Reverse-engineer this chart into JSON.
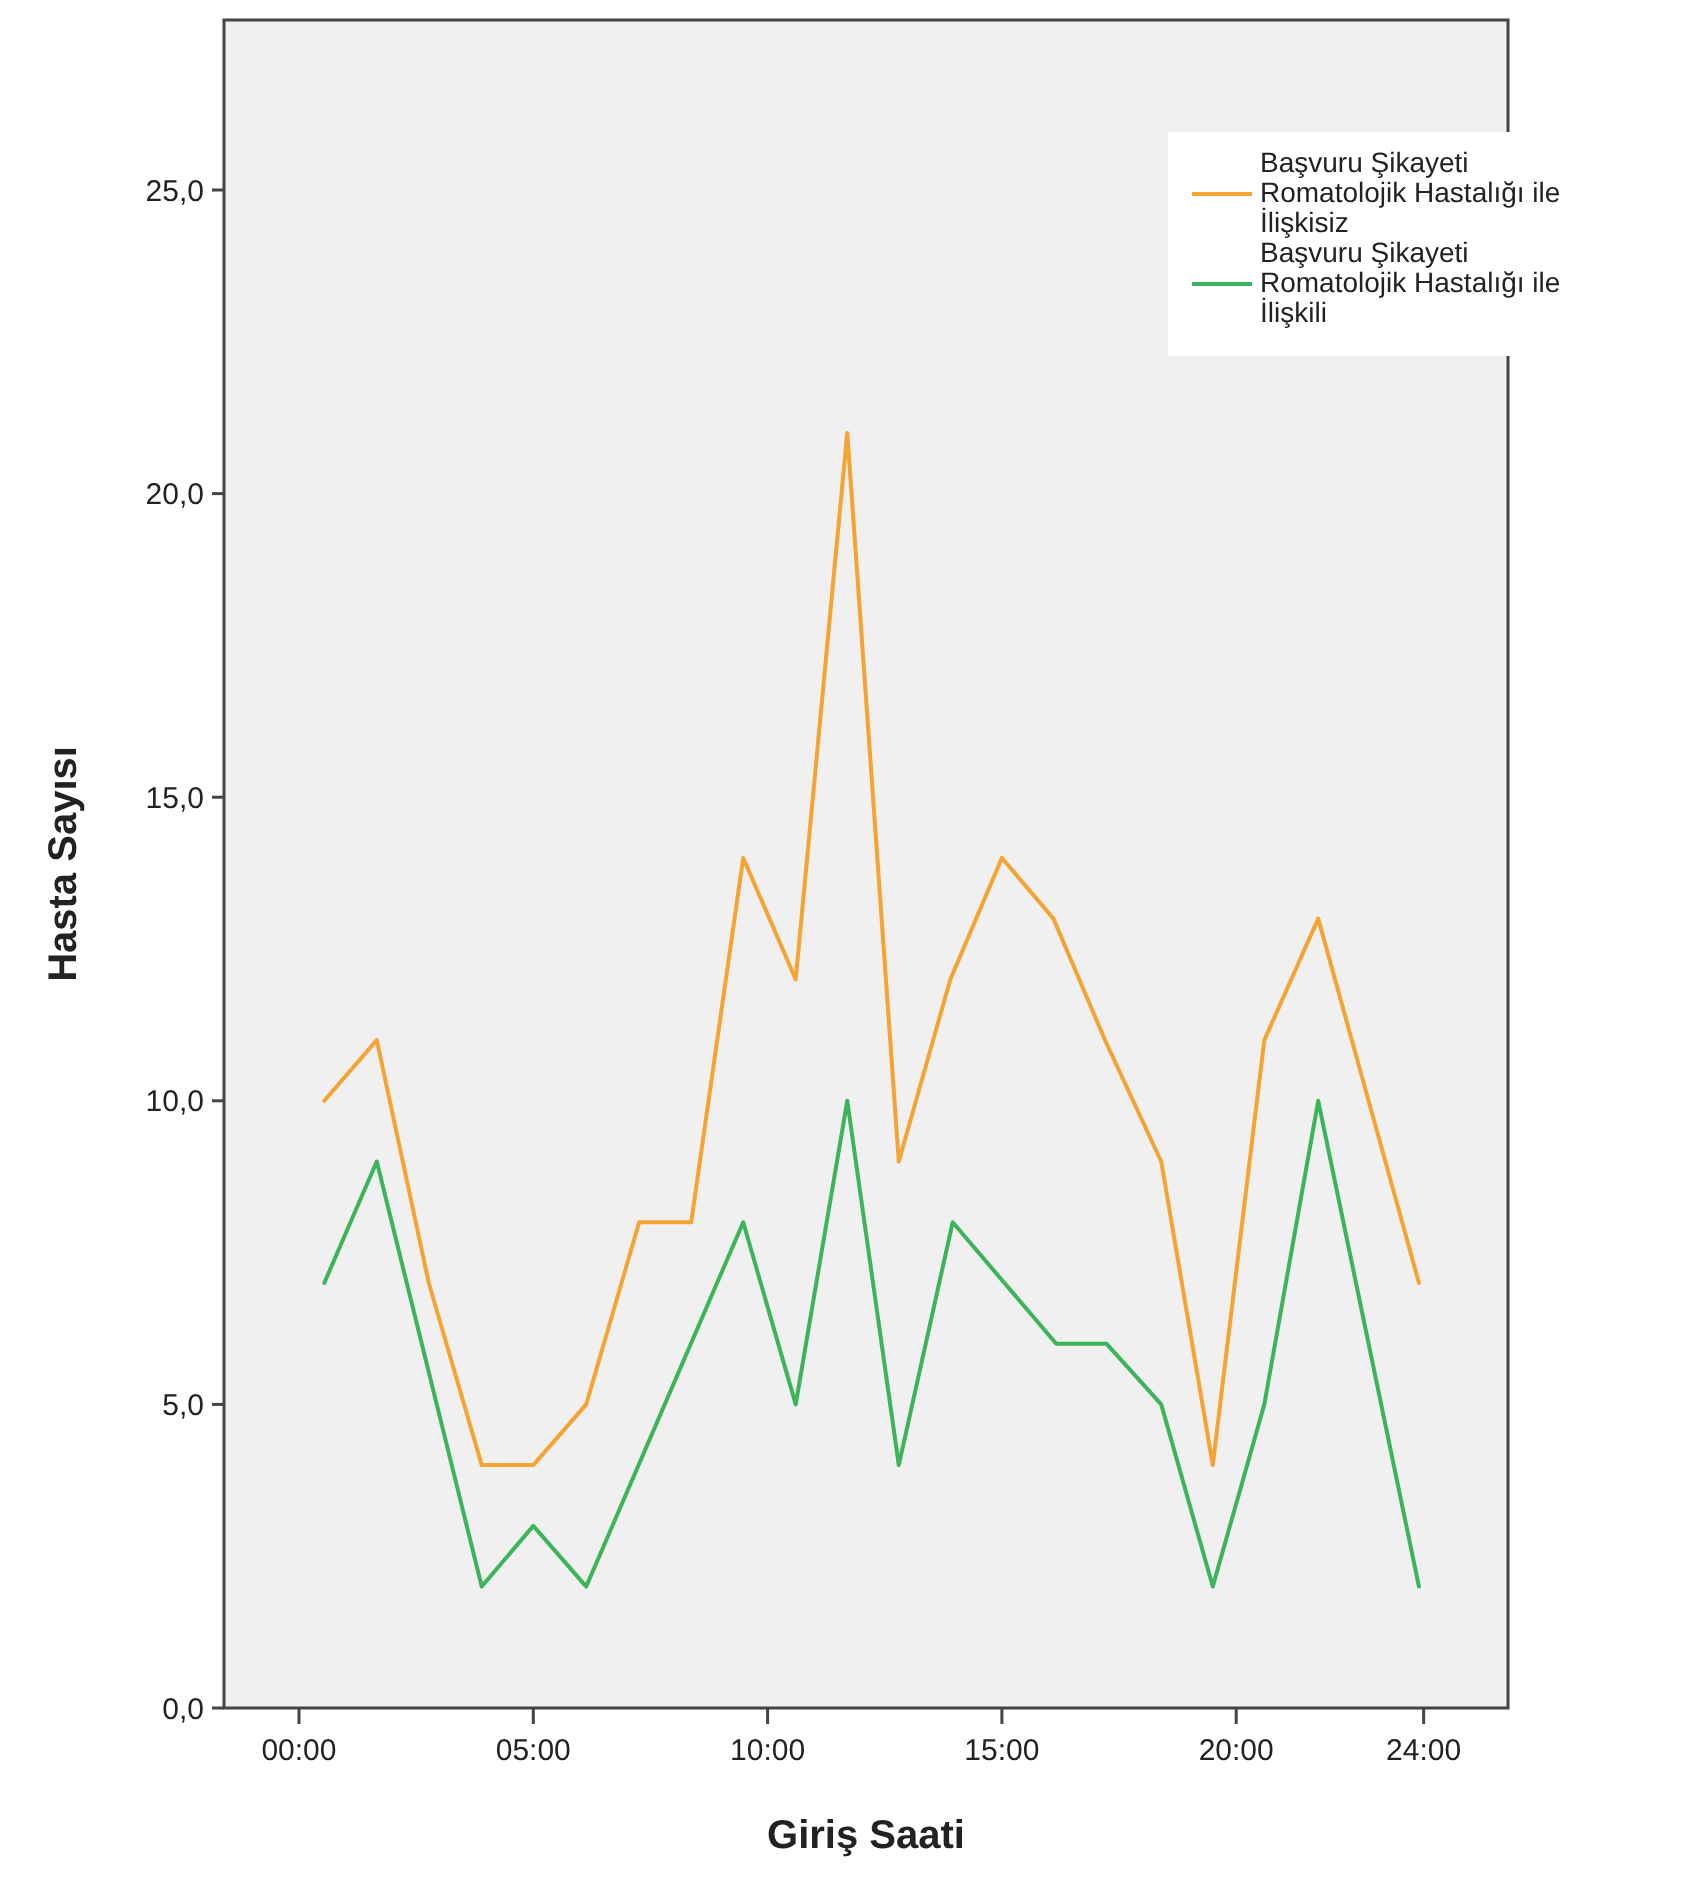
{
  "chart_data": {
    "type": "line",
    "xlabel": "Giriş Saati",
    "ylabel": "Hasta Sayısı",
    "xlim": [
      -1.6,
      25.8
    ],
    "ylim": [
      0,
      27.8
    ],
    "xticks": [
      {
        "value": 0,
        "label": "00:00"
      },
      {
        "value": 5,
        "label": "05:00"
      },
      {
        "value": 10,
        "label": "10:00"
      },
      {
        "value": 15,
        "label": "15:00"
      },
      {
        "value": 20,
        "label": "20:00"
      },
      {
        "value": 24,
        "label": "24:00"
      }
    ],
    "yticks": [
      {
        "value": 0,
        "label": "0,0"
      },
      {
        "value": 5,
        "label": "5,0"
      },
      {
        "value": 10,
        "label": "10,0"
      },
      {
        "value": 15,
        "label": "15,0"
      },
      {
        "value": 20,
        "label": "20,0"
      },
      {
        "value": 25,
        "label": "25,0"
      }
    ],
    "grid": false,
    "legend": "top right",
    "marker": "none",
    "line_style": "solid",
    "series": [
      {
        "name": "Başvuru Şikayeti Romatolojik Hastalığı ile İlişkisiz",
        "color": "#f5a332",
        "x": [
          0.54,
          1.66,
          2.77,
          3.9,
          5.0,
          6.13,
          7.26,
          8.37,
          9.48,
          10.6,
          11.7,
          12.8,
          13.9,
          15.0,
          16.1,
          17.2,
          18.4,
          19.5,
          20.6,
          21.75,
          23.9
        ],
        "values": [
          10,
          11,
          7,
          4,
          4,
          5,
          8,
          8,
          14,
          12,
          21,
          9,
          12,
          14,
          13,
          11,
          9,
          4,
          11,
          13,
          7
        ]
      },
      {
        "name": "Başvuru Şikayeti Romatolojik Hastalığı ile İlişkili",
        "color": "#3cb45a",
        "x": [
          0.54,
          1.66,
          3.9,
          5.0,
          6.13,
          9.48,
          10.6,
          11.7,
          12.8,
          13.95,
          16.16,
          17.23,
          18.4,
          19.5,
          20.6,
          21.75,
          23.9
        ],
        "values": [
          7,
          9,
          2,
          3,
          2,
          8,
          5,
          10,
          4,
          8,
          6,
          6,
          5,
          2,
          5,
          10,
          2
        ]
      }
    ]
  }
}
